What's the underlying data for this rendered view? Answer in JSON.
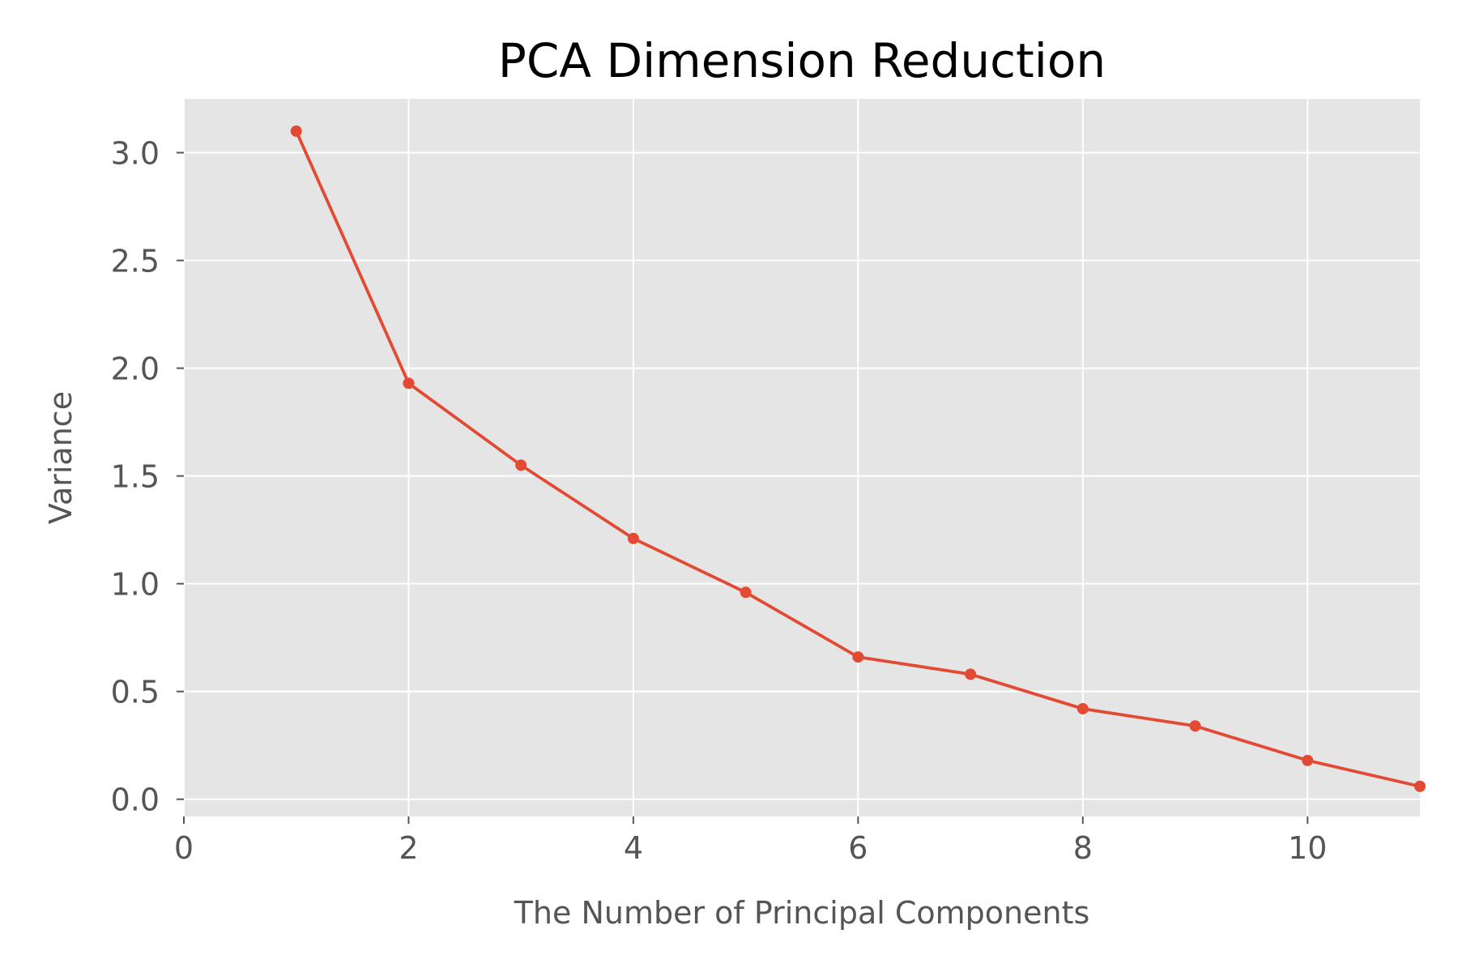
{
  "chart_data": {
    "type": "line",
    "title": "PCA Dimension Reduction",
    "xlabel": "The Number of Principal Components",
    "ylabel": "Variance",
    "xlim": [
      0,
      11
    ],
    "ylim": [
      -0.08,
      3.25
    ],
    "xticks": [
      0,
      2,
      4,
      6,
      8,
      10
    ],
    "xtick_labels": [
      "0",
      "2",
      "4",
      "6",
      "8",
      "10"
    ],
    "yticks": [
      0.0,
      0.5,
      1.0,
      1.5,
      2.0,
      2.5,
      3.0
    ],
    "ytick_labels": [
      "0.0",
      "0.5",
      "1.0",
      "1.5",
      "2.0",
      "2.5",
      "3.0"
    ],
    "grid": true,
    "series": [
      {
        "color": "#e24a33",
        "marker": "circle",
        "x": [
          1,
          2,
          3,
          4,
          5,
          6,
          7,
          8,
          9,
          10,
          11
        ],
        "y": [
          3.1,
          1.93,
          1.55,
          1.21,
          0.96,
          0.66,
          0.58,
          0.42,
          0.34,
          0.18,
          0.06
        ]
      }
    ]
  }
}
